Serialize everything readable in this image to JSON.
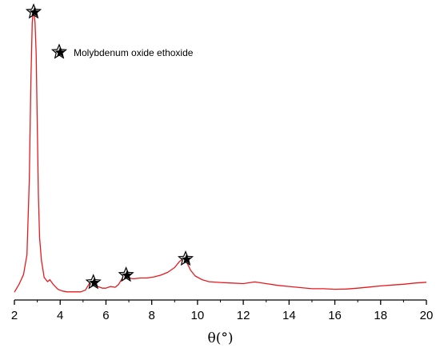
{
  "chart_data": {
    "type": "line",
    "xlabel": "θ(°)",
    "ylabel": "",
    "xlim": [
      2,
      20
    ],
    "ylim": [
      0,
      100
    ],
    "x_ticks": [
      "2",
      "4",
      "6",
      "8",
      "10",
      "12",
      "14",
      "16",
      "18",
      "20"
    ],
    "y_axis_visible": false,
    "grid": false,
    "legend": {
      "placement": "top-left",
      "entries": [
        {
          "label": "Molybdenum oxide ethoxide",
          "marker": "star"
        }
      ]
    },
    "series": [
      {
        "color": "#e8191c",
        "x": [
          2.0,
          2.2,
          2.4,
          2.55,
          2.65,
          2.72,
          2.78,
          2.82,
          2.86,
          2.9,
          2.95,
          3.0,
          3.05,
          3.1,
          3.18,
          3.3,
          3.45,
          3.55,
          3.7,
          3.9,
          4.1,
          4.3,
          4.6,
          4.9,
          5.1,
          5.25,
          5.35,
          5.45,
          5.55,
          5.7,
          5.85,
          6.0,
          6.2,
          6.4,
          6.55,
          6.7,
          6.8,
          6.9,
          7.0,
          7.2,
          7.5,
          7.8,
          8.1,
          8.4,
          8.7,
          9.0,
          9.2,
          9.35,
          9.45,
          9.55,
          9.7,
          9.9,
          10.2,
          10.5,
          11.0,
          11.5,
          12.0,
          12.5,
          13.0,
          13.5,
          14.0,
          14.5,
          15.0,
          15.5,
          16.0,
          16.5,
          17.0,
          17.5,
          18.0,
          18.5,
          19.0,
          19.5,
          20.0
        ],
        "y": [
          0.8,
          3.5,
          7.0,
          14.0,
          40.0,
          75.0,
          96.0,
          100.0,
          99.0,
          96.0,
          85.0,
          60.0,
          35.0,
          20.0,
          12.0,
          6.0,
          4.5,
          5.2,
          3.5,
          1.8,
          1.2,
          0.9,
          0.9,
          0.9,
          1.5,
          3.5,
          5.0,
          4.0,
          3.2,
          2.6,
          2.2,
          2.2,
          2.8,
          2.5,
          3.5,
          5.5,
          7.0,
          6.5,
          5.8,
          5.5,
          5.8,
          5.8,
          6.2,
          6.8,
          7.8,
          9.5,
          11.5,
          12.5,
          12.8,
          11.0,
          8.5,
          6.5,
          5.2,
          4.5,
          4.2,
          4.0,
          3.8,
          4.4,
          3.8,
          3.2,
          2.8,
          2.4,
          2.0,
          2.0,
          1.8,
          1.9,
          2.2,
          2.6,
          3.0,
          3.3,
          3.6,
          4.0,
          4.3
        ]
      }
    ],
    "star_markers_x": [
      2.84,
      5.45,
      6.88,
      9.48
    ]
  }
}
